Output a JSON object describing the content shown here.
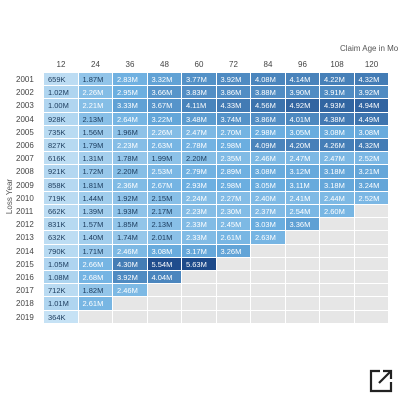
{
  "chart_data": {
    "type": "heatmap",
    "xlabel": "Claim Age in Mo",
    "ylabel": "Loss Year",
    "x": [
      "12",
      "24",
      "36",
      "48",
      "60",
      "72",
      "84",
      "96",
      "108",
      "120"
    ],
    "y": [
      "2001",
      "2002",
      "2003",
      "2004",
      "2005",
      "2006",
      "2007",
      "2008",
      "2009",
      "2010",
      "2011",
      "2012",
      "2013",
      "2014",
      "2015",
      "2016",
      "2017",
      "2018",
      "2019"
    ],
    "values": [
      [
        659,
        1870,
        2830,
        3320,
        3770,
        3920,
        4080,
        4140,
        4220,
        4320
      ],
      [
        1020,
        2260,
        2950,
        3660,
        3830,
        3860,
        3880,
        3900,
        3910,
        3920
      ],
      [
        1000,
        2210,
        3330,
        3670,
        4110,
        4330,
        4560,
        4920,
        4930,
        4940
      ],
      [
        928,
        2130,
        2640,
        3220,
        3480,
        3740,
        3860,
        4010,
        4380,
        4490
      ],
      [
        735,
        1560,
        1960,
        2260,
        2470,
        2700,
        2980,
        3050,
        3080,
        3080
      ],
      [
        827,
        1790,
        2230,
        2630,
        2780,
        2980,
        4090,
        4200,
        4260,
        4320
      ],
      [
        616,
        1310,
        1780,
        1990,
        2200,
        2350,
        2460,
        2470,
        2470,
        2520
      ],
      [
        921,
        1720,
        2200,
        2530,
        2790,
        2890,
        3080,
        3120,
        3180,
        3210
      ],
      [
        858,
        1810,
        2360,
        2670,
        2930,
        2980,
        3050,
        3110,
        3180,
        3240
      ],
      [
        719,
        1440,
        1920,
        2150,
        2240,
        2270,
        2400,
        2410,
        2440,
        2520
      ],
      [
        662,
        1390,
        1930,
        2170,
        2230,
        2300,
        2370,
        2540,
        2600,
        null
      ],
      [
        831,
        1570,
        1850,
        2130,
        2330,
        2450,
        3030,
        3360,
        null,
        null
      ],
      [
        632,
        1400,
        1740,
        2010,
        2330,
        2610,
        2630,
        null,
        null,
        null
      ],
      [
        790,
        1710,
        2460,
        3080,
        3170,
        3260,
        null,
        null,
        null,
        null
      ],
      [
        1050,
        2660,
        4300,
        5540,
        5630,
        null,
        null,
        null,
        null,
        null
      ],
      [
        1080,
        2680,
        3920,
        4040,
        null,
        null,
        null,
        null,
        null,
        null
      ],
      [
        712,
        1820,
        2460,
        null,
        null,
        null,
        null,
        null,
        null,
        null
      ],
      [
        1010,
        2610,
        null,
        null,
        null,
        null,
        null,
        null,
        null,
        null
      ],
      [
        364,
        null,
        null,
        null,
        null,
        null,
        null,
        null,
        null,
        null
      ]
    ],
    "labels": [
      [
        "659K",
        "1.87M",
        "2.83M",
        "3.32M",
        "3.77M",
        "3.92M",
        "4.08M",
        "4.14M",
        "4.22M",
        "4.32M"
      ],
      [
        "1.02M",
        "2.26M",
        "2.95M",
        "3.66M",
        "3.83M",
        "3.86M",
        "3.88M",
        "3.90M",
        "3.91M",
        "3.92M"
      ],
      [
        "1.00M",
        "2.21M",
        "3.33M",
        "3.67M",
        "4.11M",
        "4.33M",
        "4.56M",
        "4.92M",
        "4.93M",
        "4.94M"
      ],
      [
        "928K",
        "2.13M",
        "2.64M",
        "3.22M",
        "3.48M",
        "3.74M",
        "3.86M",
        "4.01M",
        "4.38M",
        "4.49M"
      ],
      [
        "735K",
        "1.56M",
        "1.96M",
        "2.26M",
        "2.47M",
        "2.70M",
        "2.98M",
        "3.05M",
        "3.08M",
        "3.08M"
      ],
      [
        "827K",
        "1.79M",
        "2.23M",
        "2.63M",
        "2.78M",
        "2.98M",
        "4.09M",
        "4.20M",
        "4.26M",
        "4.32M"
      ],
      [
        "616K",
        "1.31M",
        "1.78M",
        "1.99M",
        "2.20M",
        "2.35M",
        "2.46M",
        "2.47M",
        "2.47M",
        "2.52M"
      ],
      [
        "921K",
        "1.72M",
        "2.20M",
        "2.53M",
        "2.79M",
        "2.89M",
        "3.08M",
        "3.12M",
        "3.18M",
        "3.21M"
      ],
      [
        "858K",
        "1.81M",
        "2.36M",
        "2.67M",
        "2.93M",
        "2.98M",
        "3.05M",
        "3.11M",
        "3.18M",
        "3.24M"
      ],
      [
        "719K",
        "1.44M",
        "1.92M",
        "2.15M",
        "2.24M",
        "2.27M",
        "2.40M",
        "2.41M",
        "2.44M",
        "2.52M"
      ],
      [
        "662K",
        "1.39M",
        "1.93M",
        "2.17M",
        "2.23M",
        "2.30M",
        "2.37M",
        "2.54M",
        "2.60M",
        ""
      ],
      [
        "831K",
        "1.57M",
        "1.85M",
        "2.13M",
        "2.33M",
        "2.45M",
        "3.03M",
        "3.36M",
        "",
        ""
      ],
      [
        "632K",
        "1.40M",
        "1.74M",
        "2.01M",
        "2.33M",
        "2.61M",
        "2.63M",
        "",
        "",
        ""
      ],
      [
        "790K",
        "1.71M",
        "2.46M",
        "3.08M",
        "3.17M",
        "3.26M",
        "",
        "",
        "",
        ""
      ],
      [
        "1.05M",
        "2.66M",
        "4.30M",
        "5.54M",
        "5.63M",
        "",
        "",
        "",
        "",
        ""
      ],
      [
        "1.08M",
        "2.68M",
        "3.92M",
        "4.04M",
        "",
        "",
        "",
        "",
        "",
        ""
      ],
      [
        "712K",
        "1.82M",
        "2.46M",
        "",
        "",
        "",
        "",
        "",
        "",
        ""
      ],
      [
        "1.01M",
        "2.61M",
        "",
        "",
        "",
        "",
        "",
        "",
        "",
        ""
      ],
      [
        "364K",
        "",
        "",
        "",
        "",
        "",
        "",
        "",
        "",
        ""
      ]
    ],
    "color_min": "#c6e2f5",
    "color_mid": "#6aaee0",
    "color_max": "#1d4a8a",
    "empty_color": "#e6e6e6"
  },
  "icons": {
    "external_link": "external-link-icon"
  }
}
